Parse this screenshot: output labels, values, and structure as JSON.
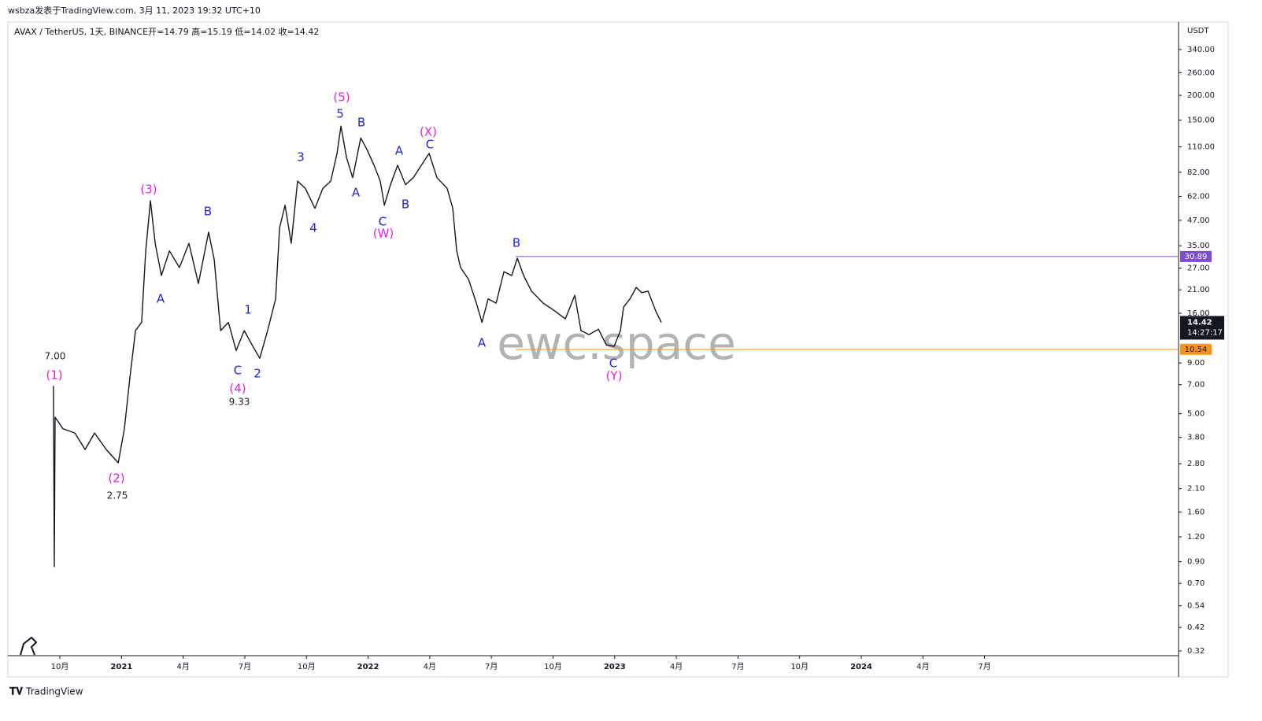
{
  "header": "wsbza发表于TradingView.com, 3月 11, 2023 19:32 UTC+10",
  "footer": "TradingView",
  "chart_data": {
    "type": "line",
    "title": "AVAX / TetherUS, 1天, BINANCE",
    "ohlc": "开=14.79 高=15.19 低=14.02 收=14.42",
    "watermark": "ewc.space",
    "currency": "USDT",
    "log_scale": true,
    "grid": false,
    "xlim": [
      -2.53,
      54.44
    ],
    "ylim": [
      0.303,
      467.4
    ],
    "xticks": [
      {
        "value": 0,
        "label": "10月"
      },
      {
        "value": 3,
        "label": "2021"
      },
      {
        "value": 6,
        "label": "4月"
      },
      {
        "value": 9,
        "label": "7月"
      },
      {
        "value": 12,
        "label": "10月"
      },
      {
        "value": 15,
        "label": "2022"
      },
      {
        "value": 18,
        "label": "4月"
      },
      {
        "value": 21,
        "label": "7月"
      },
      {
        "value": 24,
        "label": "10月"
      },
      {
        "value": 27,
        "label": "2023"
      },
      {
        "value": 30,
        "label": "4月"
      },
      {
        "value": 33,
        "label": "7月"
      },
      {
        "value": 36,
        "label": "10月"
      },
      {
        "value": 39,
        "label": "2024"
      },
      {
        "value": 42,
        "label": "4月"
      },
      {
        "value": 45,
        "label": "7月"
      }
    ],
    "yticks": [
      {
        "value": 340,
        "label": "340.00"
      },
      {
        "value": 260,
        "label": "260.00"
      },
      {
        "value": 200,
        "label": "200.00"
      },
      {
        "value": 150,
        "label": "150.00"
      },
      {
        "value": 110,
        "label": "110.00"
      },
      {
        "value": 82,
        "label": "82.00"
      },
      {
        "value": 62,
        "label": "62.00"
      },
      {
        "value": 47,
        "label": "47.00"
      },
      {
        "value": 35,
        "label": "35.00"
      },
      {
        "value": 27,
        "label": "27.00"
      },
      {
        "value": 21,
        "label": "21.00"
      },
      {
        "value": 16,
        "label": "16.00"
      },
      {
        "value": 9,
        "label": "9.00"
      },
      {
        "value": 7,
        "label": "7.00"
      },
      {
        "value": 5,
        "label": "5.00"
      },
      {
        "value": 3.8,
        "label": "3.80"
      },
      {
        "value": 2.8,
        "label": "2.80"
      },
      {
        "value": 2.1,
        "label": "2.10"
      },
      {
        "value": 1.6,
        "label": "1.60"
      },
      {
        "value": 1.2,
        "label": "1.20"
      },
      {
        "value": 0.9,
        "label": "0.90"
      },
      {
        "value": 0.7,
        "label": "0.70"
      },
      {
        "value": 0.54,
        "label": "0.54"
      },
      {
        "value": 0.42,
        "label": "0.42"
      },
      {
        "value": 0.32,
        "label": "0.32"
      }
    ],
    "series": [
      {
        "name": "AVAX",
        "color": "#131722",
        "x": [
          -0.31,
          -0.27,
          -0.23,
          0.15,
          0.73,
          1.23,
          1.69,
          2.26,
          2.84,
          3.14,
          3.41,
          3.68,
          3.98,
          4.18,
          4.41,
          4.64,
          4.94,
          5.33,
          5.82,
          6.28,
          6.74,
          7.24,
          7.51,
          7.82,
          8.2,
          8.58,
          8.97,
          9.35,
          9.73,
          10.11,
          10.5,
          10.69,
          10.96,
          11.26,
          11.57,
          11.95,
          12.41,
          12.8,
          13.18,
          13.49,
          13.68,
          13.95,
          14.25,
          14.64,
          14.94,
          15.29,
          15.59,
          15.79,
          16.09,
          16.44,
          16.82,
          17.2,
          17.59,
          17.97,
          18.35,
          18.85,
          19.12,
          19.31,
          19.5,
          19.89,
          20.27,
          20.54,
          20.84,
          21.23,
          21.61,
          21.99,
          22.26,
          22.57,
          22.95,
          23.52,
          24.1,
          24.6,
          25.06,
          25.36,
          25.75,
          26.21,
          26.59,
          26.97,
          27.28,
          27.43,
          27.74,
          28.05,
          28.31,
          28.62,
          29.0,
          29.27
        ],
        "values": [
          6.9,
          0.85,
          4.8,
          4.2,
          4.0,
          3.3,
          4.0,
          3.3,
          2.83,
          4.2,
          7.6,
          13.1,
          14.4,
          33,
          59,
          36,
          24.8,
          33,
          27.2,
          36,
          22.6,
          41,
          29.8,
          13.1,
          14.4,
          10.4,
          13.1,
          11.1,
          9.5,
          13.1,
          18.9,
          43,
          56,
          36,
          74,
          68,
          54,
          68,
          74,
          102,
          140,
          97,
          77,
          122,
          107,
          89,
          74,
          56,
          71,
          89,
          71,
          77,
          89,
          102,
          77,
          68,
          54,
          33,
          27.2,
          23.7,
          18.0,
          14.4,
          18.9,
          18.0,
          25.9,
          24.8,
          30.3,
          24.8,
          20.7,
          18.0,
          16.4,
          15.0,
          19.7,
          13.1,
          12.5,
          13.3,
          11.1,
          10.9,
          13.1,
          17.2,
          18.9,
          21.6,
          20.3,
          20.7,
          16.4,
          14.4
        ]
      }
    ],
    "levels": [
      {
        "value": 30.89,
        "color": "#7b4dd6"
      },
      {
        "value": 10.54,
        "color": "#f7931a"
      }
    ],
    "last_price": 14.42,
    "countdown": "14:27:17",
    "annotations": [
      {
        "text": "7.00",
        "color": "#222222"
      },
      {
        "text": "(1)",
        "color": "#e91ee9"
      },
      {
        "text": "(2)",
        "color": "#e91ee9"
      },
      {
        "text": "2.75",
        "color": "#222222"
      },
      {
        "text": "(3)",
        "color": "#e91ee9"
      },
      {
        "text": "A",
        "color": "#2323d6"
      },
      {
        "text": "B",
        "color": "#2323d6"
      },
      {
        "text": "C",
        "color": "#2323d6"
      },
      {
        "text": "(4)",
        "color": "#e91ee9"
      },
      {
        "text": "9.33",
        "color": "#222222"
      },
      {
        "text": "1",
        "color": "#2323d6"
      },
      {
        "text": "2",
        "color": "#2323d6"
      },
      {
        "text": "3",
        "color": "#2323d6"
      },
      {
        "text": "4",
        "color": "#2323d6"
      },
      {
        "text": "(5)",
        "color": "#e91ee9"
      },
      {
        "text": "5",
        "color": "#2323d6"
      },
      {
        "text": "A",
        "color": "#2323d6"
      },
      {
        "text": "B",
        "color": "#2323d6"
      },
      {
        "text": "C",
        "color": "#2323d6"
      },
      {
        "text": "(W)",
        "color": "#e91ee9"
      },
      {
        "text": "A",
        "color": "#2323d6"
      },
      {
        "text": "B",
        "color": "#2323d6"
      },
      {
        "text": "(X)",
        "color": "#e91ee9"
      },
      {
        "text": "C",
        "color": "#2323d6"
      },
      {
        "text": "A",
        "color": "#2323d6"
      },
      {
        "text": "B",
        "color": "#2323d6"
      },
      {
        "text": "C",
        "color": "#2323d6"
      },
      {
        "text": "(Y)",
        "color": "#e91ee9"
      }
    ]
  }
}
